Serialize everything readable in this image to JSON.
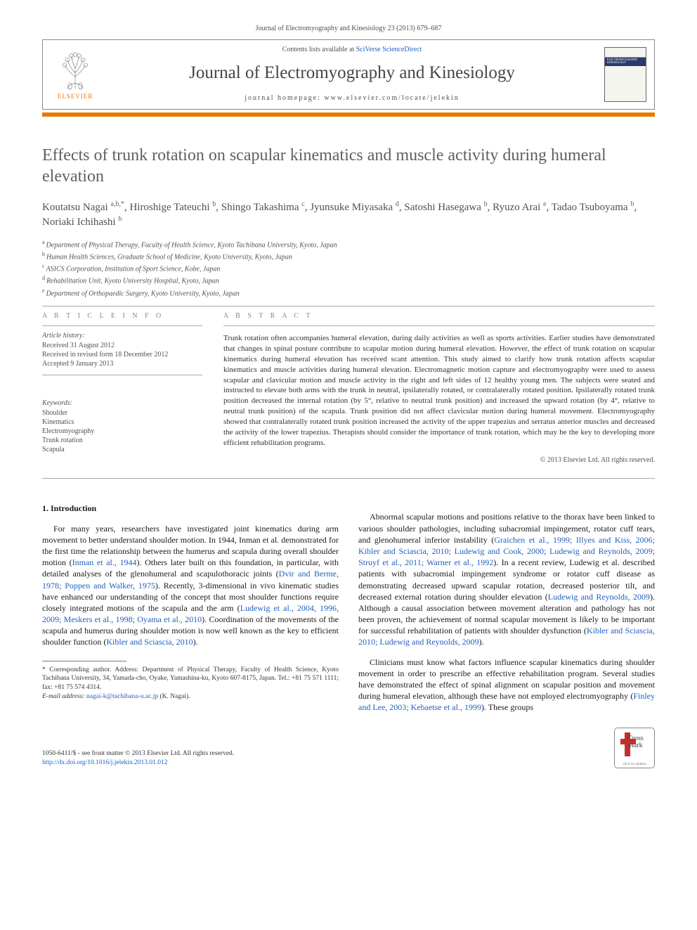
{
  "journal_ref": "Journal of Electromyography and Kinesiology 23 (2013) 679–687",
  "header": {
    "contents_prefix": "Contents lists available at ",
    "contents_link": "SciVerse ScienceDirect",
    "journal_title": "Journal of Electromyography and Kinesiology",
    "homepage": "journal homepage: www.elsevier.com/locate/jelekin",
    "elsevier_label": "ELSEVIER",
    "cover_title": "ELECTROMYOGRAPHY KINESIOLOGY"
  },
  "colors": {
    "orange": "#e67a00",
    "link": "#2060c0",
    "grey_text": "#505050",
    "title_grey": "#606060"
  },
  "article": {
    "title": "Effects of trunk rotation on scapular kinematics and muscle activity during humeral elevation",
    "authors_html": "Koutatsu Nagai <sup>a,b,*</sup>, Hiroshige Tateuchi <sup>b</sup>, Shingo Takashima <sup>c</sup>, Jyunsuke Miyasaka <sup>d</sup>, Satoshi Hasegawa <sup>b</sup>, Ryuzo Arai <sup>e</sup>, Tadao Tsuboyama <sup>b</sup>, Noriaki Ichihashi <sup>b</sup>",
    "affiliations": [
      {
        "lbl": "a",
        "text": "Department of Physical Therapy, Faculty of Health Science, Kyoto Tachibana University, Kyoto, Japan"
      },
      {
        "lbl": "b",
        "text": "Human Health Sciences, Graduate School of Medicine, Kyoto University, Kyoto, Japan"
      },
      {
        "lbl": "c",
        "text": "ASICS Corporation, Institution of Sport Science, Kobe, Japan"
      },
      {
        "lbl": "d",
        "text": "Rehabilitation Unit, Kyoto University Hospital, Kyoto, Japan"
      },
      {
        "lbl": "e",
        "text": "Department of Orthopaedic Surgery, Kyoto University, Kyoto, Japan"
      }
    ]
  },
  "info": {
    "head": "A R T I C L E   I N F O",
    "history_label": "Article history:",
    "received": "Received 31 August 2012",
    "revised": "Received in revised form 18 December 2012",
    "accepted": "Accepted 9 January 2013",
    "keywords_label": "Keywords:",
    "keywords": [
      "Shoulder",
      "Kinematics",
      "Electromyography",
      "Trunk rotation",
      "Scapula"
    ]
  },
  "abstract": {
    "head": "A B S T R A C T",
    "body": "Trunk rotation often accompanies humeral elevation, during daily activities as well as sports activities. Earlier studies have demonstrated that changes in spinal posture contribute to scapular motion during humeral elevation. However, the effect of trunk rotation on scapular kinematics during humeral elevation has received scant attention. This study aimed to clarify how trunk rotation affects scapular kinematics and muscle activities during humeral elevation. Electromagnetic motion capture and electromyography were used to assess scapular and clavicular motion and muscle activity in the right and left sides of 12 healthy young men. The subjects were seated and instructed to elevate both arms with the trunk in neutral, ipsilaterally rotated, or contralaterally rotated position. Ipsilaterally rotated trunk position decreased the internal rotation (by 5°, relative to neutral trunk position) and increased the upward rotation (by 4°, relative to neutral trunk position) of the scapula. Trunk position did not affect clavicular motion during humeral movement. Electromyography showed that contralaterally rotated trunk position increased the activity of the upper trapezius and serratus anterior muscles and decreased the activity of the lower trapezius. Therapists should consider the importance of trunk rotation, which may be the key to developing more efficient rehabilitation programs.",
    "copyright": "© 2013 Elsevier Ltd. All rights reserved."
  },
  "body": {
    "section_head": "1. Introduction",
    "col1_p1a": "For many years, researchers have investigated joint kinematics during arm movement to better understand shoulder motion. In 1944, Inman et al. demonstrated for the first time the relationship between the humerus and scapula during overall shoulder motion (",
    "col1_p1_cite1": "Inman et al., 1944",
    "col1_p1b": "). Others later built on this foundation, in particular, with detailed analyses of the glenohumeral and scapulothoracic joints (",
    "col1_p1_cite2": "Dvir and Berme, 1978; Poppen and Walker, 1975",
    "col1_p1c": "). Recently, 3-dimensional in vivo kinematic studies have enhanced our understanding of the concept that most shoulder functions require closely integrated motions of the scapula and the arm (",
    "col1_p1_cite3": "Ludewig et al., 2004, 1996, 2009; Meskers et al., 1998; Oyama et al., 2010",
    "col1_p1d": "). Coordination of the movements of the scapula and humerus during shoulder motion is now well known as the key to efficient shoulder function (",
    "col1_p1_cite4": "Kibler and Sciascia, 2010",
    "col1_p1e": ").",
    "col2_p1a": "Abnormal scapular motions and positions relative to the thorax have been linked to various shoulder pathologies, including subacromial impingement, rotator cuff tears, and glenohumeral inferior instability (",
    "col2_p1_cite1": "Graichen et al., 1999; Illyes and Kiss, 2006; Kibler and Sciascia, 2010; Ludewig and Cook, 2000; Ludewig and Reynolds, 2009; Struyf et al., 2011; Warner et al., 1992",
    "col2_p1b": "). In a recent review, Ludewig et al. described patients with subacromial impingement syndrome or rotator cuff disease as demonstrating decreased upward scapular rotation, decreased posterior tilt, and decreased external rotation during shoulder elevation (",
    "col2_p1_cite2": "Ludewig and Reynolds, 2009",
    "col2_p1c": "). Although a causal association between movement alteration and pathology has not been proven, the achievement of normal scapular movement is likely to be important for successful rehabilitation of patients with shoulder dysfunction (",
    "col2_p1_cite3": "Kibler and Sciascia, 2010; Ludewig and Reynolds, 2009",
    "col2_p1d": ").",
    "col2_p2a": "Clinicians must know what factors influence scapular kinematics during shoulder movement in order to prescribe an effective rehabilitation program. Several studies have demonstrated the effect of spinal alignment on scapular position and movement during humeral elevation, although these have not employed electromyography (",
    "col2_p2_cite1": "Finley and Lee, 2003; Kebaetse et al., 1999",
    "col2_p2b": "). These groups"
  },
  "footnote": {
    "corr_label": "* Corresponding author.",
    "corr_text": " Address: Department of Physical Therapy, Faculty of Health Science, Kyoto Tachibana University, 34, Yamada-cho, Oyake, Yamashina-ku, Kyoto 607-8175, Japan. Tel.: +81 75 571 1111; fax: +81 75 574 4314.",
    "email_label": "E-mail address:",
    "email": "nagai-k@tachibana-u.ac.jp",
    "email_tail": " (K. Nagai)."
  },
  "footer": {
    "line1": "1050-6411/$ - see front matter © 2013 Elsevier Ltd. All rights reserved.",
    "doi": "http://dx.doi.org/10.1016/j.jelekin.2013.01.012",
    "crossmark_text": "Cross Mark",
    "crossmark_click": "click for updates"
  }
}
